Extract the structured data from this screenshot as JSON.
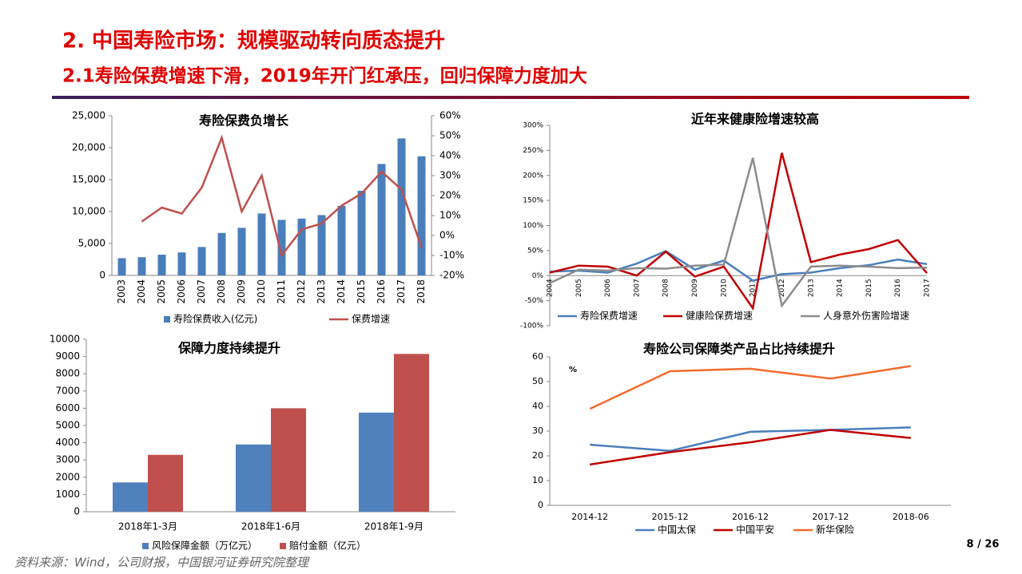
{
  "header": {
    "title": "2. 中国寿险市场：规模驱动转向质态提升",
    "subtitle": "2.1寿险保费增速下滑，2019年开门红承压，回归保障力度加大"
  },
  "chart_data": [
    {
      "type": "combo",
      "title": "寿险保费负增长",
      "categories": [
        "2003",
        "2004",
        "2005",
        "2006",
        "2007",
        "2008",
        "2009",
        "2010",
        "2011",
        "2012",
        "2013",
        "2014",
        "2015",
        "2016",
        "2017",
        "2018"
      ],
      "series": [
        {
          "name": "寿险保费收入(亿元)",
          "type": "bar",
          "color": "#4a7ebb",
          "values": [
            2700,
            2850,
            3250,
            3600,
            4450,
            6650,
            7450,
            9700,
            8700,
            8900,
            9450,
            10900,
            13250,
            17450,
            21450,
            18650
          ]
        },
        {
          "name": "保费增速",
          "type": "line",
          "axis": "y2",
          "color": "#c0504d",
          "values": [
            null,
            7,
            14,
            11,
            24,
            49,
            12,
            30,
            -10,
            3,
            6,
            15,
            21,
            32,
            23,
            -6
          ]
        }
      ],
      "ylim": [
        0,
        25000
      ],
      "yticks": [
        0,
        {
          "value": 5000,
          "label": "5,000"
        },
        {
          "value": 10000,
          "label": "10,000"
        },
        {
          "value": 15000,
          "label": "15,000"
        },
        {
          "value": 20000,
          "label": "20,000"
        },
        {
          "value": 25000,
          "label": "25,000"
        }
      ],
      "y2lim": [
        -20,
        60
      ],
      "y2ticks": [
        {
          "value": -20,
          "label": "-20%"
        },
        {
          "value": -10,
          "label": "-10%"
        },
        {
          "value": 0,
          "label": "0%"
        },
        {
          "value": 10,
          "label": "10%"
        },
        {
          "value": 20,
          "label": "20%"
        },
        {
          "value": 30,
          "label": "30%"
        },
        {
          "value": 40,
          "label": "40%"
        },
        {
          "value": 50,
          "label": "50%"
        },
        {
          "value": 60,
          "label": "60%"
        }
      ]
    },
    {
      "type": "line",
      "title": "近年来健康险增速较高",
      "categories": [
        "2004",
        "2005",
        "2006",
        "2007",
        "2008",
        "2009",
        "2010",
        "2011",
        "2012",
        "2013",
        "2014",
        "2015",
        "2016",
        "2017"
      ],
      "series": [
        {
          "name": "寿险保费增速",
          "color": "#4a7ebb",
          "values": [
            8,
            10,
            6,
            24,
            49,
            12,
            30,
            -10,
            3,
            6,
            15,
            21,
            32,
            23
          ]
        },
        {
          "name": "健康险保费增速",
          "color": "#c00000",
          "values": [
            6,
            20,
            18,
            0,
            48,
            -2,
            18,
            -65,
            245,
            27,
            42,
            53,
            71,
            5
          ]
        },
        {
          "name": "人身意外伤害险增速",
          "color": "#8c8c8c",
          "values": [
            -15,
            12,
            10,
            15,
            14,
            20,
            22,
            235,
            -60,
            18,
            20,
            18,
            15,
            16
          ]
        }
      ],
      "ylim": [
        -100,
        300
      ],
      "yticks": [
        {
          "value": -100,
          "label": "-100%"
        },
        {
          "value": -50,
          "label": "-50%"
        },
        {
          "value": 0,
          "label": "0%"
        },
        {
          "value": 50,
          "label": "50%"
        },
        {
          "value": 100,
          "label": "100%"
        },
        {
          "value": 150,
          "label": "150%"
        },
        {
          "value": 200,
          "label": "200%"
        },
        {
          "value": 250,
          "label": "250%"
        },
        {
          "value": 300,
          "label": "300%"
        }
      ]
    },
    {
      "type": "bar",
      "title": "保障力度持续提升",
      "categories": [
        "2018年1-3月",
        "2018年1-6月",
        "2018年1-9月"
      ],
      "series": [
        {
          "name": "风险保障金额（万亿元）",
          "color": "#4f81bd",
          "values": [
            1700,
            3900,
            5750
          ]
        },
        {
          "name": "赔付金额（亿元）",
          "color": "#c0504d",
          "values": [
            3300,
            6000,
            9150
          ]
        }
      ],
      "ylim": [
        0,
        10000
      ],
      "yticks": [
        0,
        1000,
        2000,
        3000,
        4000,
        5000,
        6000,
        7000,
        8000,
        9000,
        10000
      ]
    },
    {
      "type": "line",
      "title": "寿险公司保障类产品占比持续提升",
      "y_unit": "%",
      "categories": [
        "2014-12",
        "2015-12",
        "2016-12",
        "2017-12",
        "2018-06"
      ],
      "series": [
        {
          "name": "中国太保",
          "color": "#4a7ebb",
          "values": [
            24.5,
            22,
            29.7,
            30.5,
            31.5
          ]
        },
        {
          "name": "中国平安",
          "color": "#c00000",
          "values": [
            16.5,
            21.5,
            25.5,
            30.5,
            27.2
          ]
        },
        {
          "name": "新华保险",
          "color": "#f26b2f",
          "values": [
            39,
            54.2,
            55.2,
            51.2,
            56.3
          ]
        }
      ],
      "ylim": [
        0,
        60
      ],
      "yticks": [
        0,
        10,
        20,
        30,
        40,
        50,
        60
      ]
    }
  ],
  "footer": {
    "source": "资料来源：Wind，公司财报，中国银河证券研究院整理",
    "page": "8 / 26"
  }
}
